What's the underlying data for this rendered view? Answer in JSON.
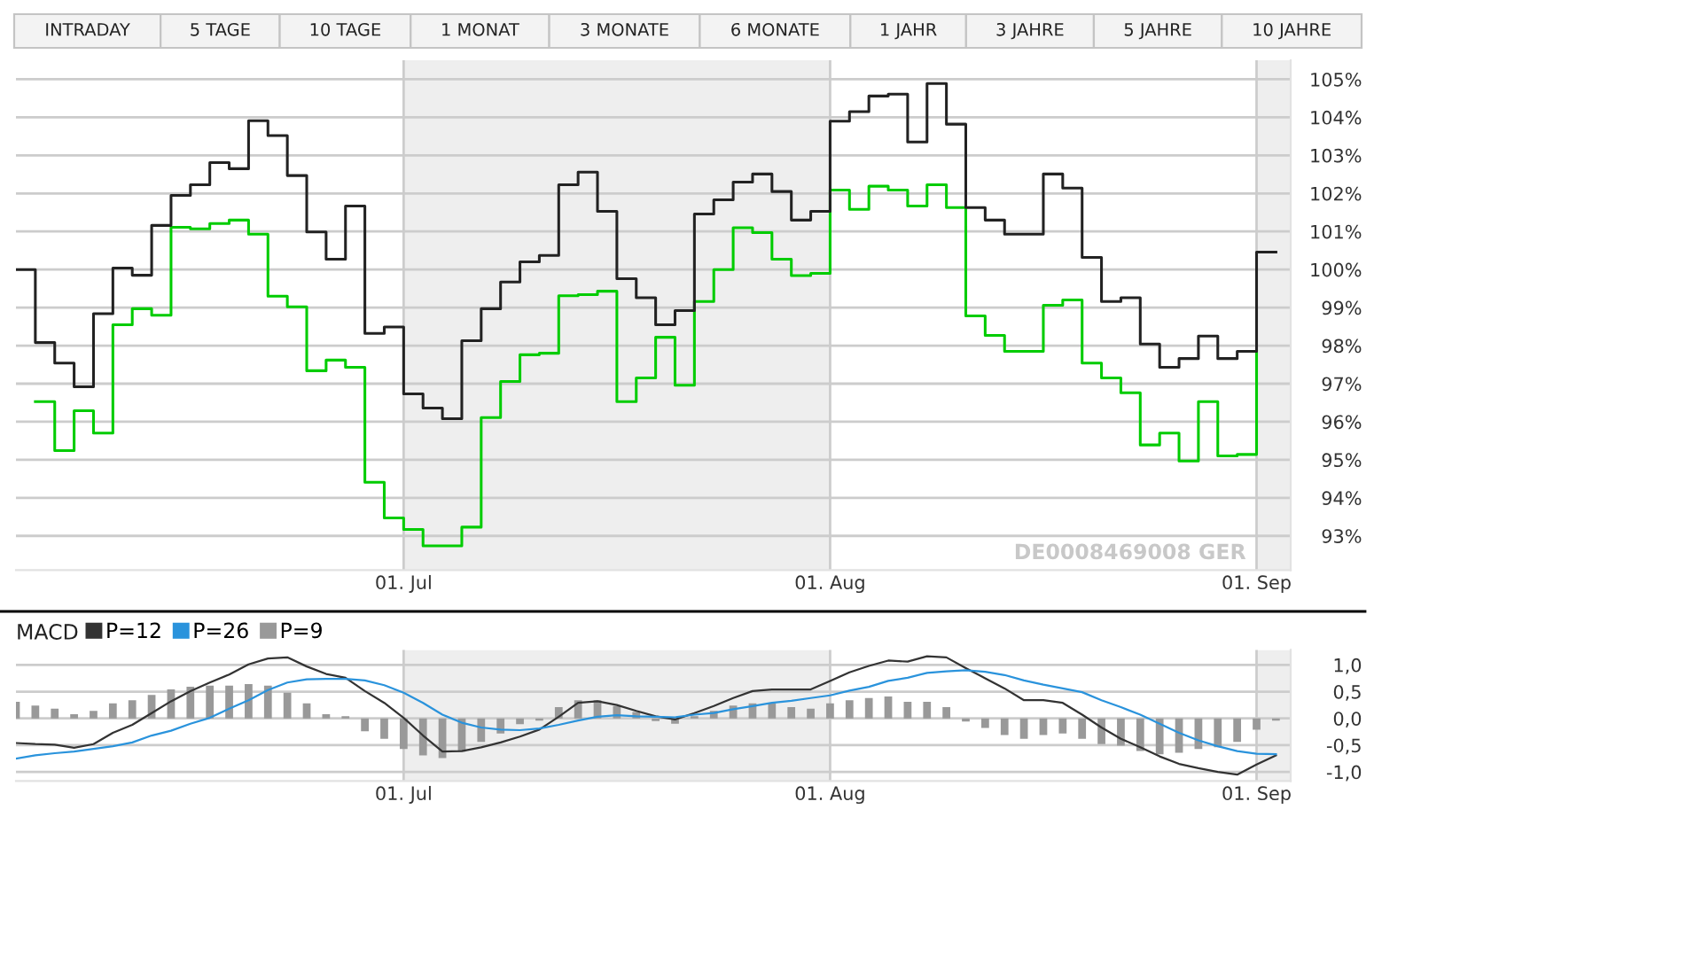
{
  "chart_data": [
    {
      "type": "step",
      "title": "DE0008469008 GER",
      "annotations": [
        "INTRADAY",
        "5 TAGE",
        "10 TAGE",
        "1 MONAT",
        "3 MONATE",
        "6 MONATE",
        "1 JAHR",
        "3 JAHRE",
        "5 JAHRE",
        "10 JAHRE"
      ],
      "categories": [
        null,
        null,
        null,
        null,
        null,
        null,
        null,
        null,
        null,
        null,
        null,
        null,
        null,
        null,
        null,
        null,
        null,
        null,
        null,
        null,
        "01. Jul",
        null,
        null,
        null,
        null,
        null,
        null,
        null,
        null,
        null,
        null,
        null,
        null,
        null,
        null,
        null,
        null,
        null,
        null,
        null,
        null,
        null,
        "01. Aug",
        null,
        null,
        null,
        null,
        null,
        null,
        null,
        null,
        null,
        null,
        null,
        null,
        null,
        null,
        null,
        null,
        null,
        null,
        null,
        null,
        null,
        "01. Sep",
        null
      ],
      "series": [
        {
          "color": "#00cc00",
          "values": [
            null,
            96.53,
            95.24,
            96.29,
            95.7,
            98.55,
            98.97,
            98.8,
            101.11,
            101.07,
            101.21,
            101.3,
            100.93,
            99.3,
            99.02,
            97.34,
            97.62,
            97.43,
            94.41,
            93.47,
            93.17,
            92.74,
            92.74,
            93.23,
            96.11,
            97.06,
            97.76,
            97.8,
            99.31,
            99.34,
            99.43,
            96.53,
            97.15,
            98.22,
            96.96,
            99.16,
            100.0,
            101.1,
            100.97,
            100.27,
            99.84,
            99.9,
            102.09,
            101.58,
            102.19,
            102.09,
            101.67,
            102.23,
            101.63,
            98.78,
            98.27,
            97.85,
            97.85,
            99.06,
            99.2,
            97.54,
            97.15,
            96.76,
            95.39,
            95.7,
            94.97,
            96.53,
            95.1,
            95.14,
            97.85,
            null
          ]
        },
        {
          "color": "#222222",
          "values": [
            100.0,
            98.08,
            97.54,
            96.92,
            98.84,
            100.04,
            99.85,
            101.16,
            101.95,
            102.23,
            102.81,
            102.65,
            103.91,
            103.52,
            102.47,
            100.99,
            100.27,
            101.67,
            98.32,
            98.49,
            96.73,
            96.36,
            96.08,
            98.13,
            98.97,
            99.67,
            100.2,
            100.37,
            102.23,
            102.56,
            101.53,
            99.76,
            99.26,
            98.55,
            98.92,
            101.46,
            101.83,
            102.3,
            102.51,
            102.05,
            101.3,
            101.53,
            103.9,
            104.15,
            104.56,
            104.61,
            103.35,
            104.89,
            103.82,
            101.63,
            101.3,
            100.93,
            100.93,
            102.51,
            102.14,
            100.32,
            99.16,
            99.26,
            98.04,
            97.43,
            97.66,
            98.25,
            97.66,
            97.85,
            100.46,
            100.46
          ]
        }
      ],
      "ylim": [
        92.1,
        105.5
      ],
      "yticks": [
        {
          "value": 93,
          "label": "93%"
        },
        {
          "value": 94,
          "label": "94%"
        },
        {
          "value": 95,
          "label": "95%"
        },
        {
          "value": 96,
          "label": "96%"
        },
        {
          "value": 97,
          "label": "97%"
        },
        {
          "value": 98,
          "label": "98%"
        },
        {
          "value": 99,
          "label": "99%"
        },
        {
          "value": 100,
          "label": "100%"
        },
        {
          "value": 101,
          "label": "101%"
        },
        {
          "value": 102,
          "label": "102%"
        },
        {
          "value": 103,
          "label": "103%"
        },
        {
          "value": 104,
          "label": "104%"
        },
        {
          "value": 105,
          "label": "105%"
        }
      ],
      "grid": true,
      "bands": [
        {
          "axis": "x",
          "from": "01. Jul",
          "to": "01. Aug",
          "color": "#eeeeee"
        }
      ]
    },
    {
      "type": "line",
      "title": "MACD",
      "categories": [
        null,
        null,
        null,
        null,
        null,
        null,
        null,
        null,
        null,
        null,
        null,
        null,
        null,
        null,
        null,
        null,
        null,
        null,
        null,
        null,
        "01. Jul",
        null,
        null,
        null,
        null,
        null,
        null,
        null,
        null,
        null,
        null,
        null,
        null,
        null,
        null,
        null,
        null,
        null,
        null,
        null,
        null,
        null,
        "01. Aug",
        null,
        null,
        null,
        null,
        null,
        null,
        null,
        null,
        null,
        null,
        null,
        null,
        null,
        null,
        null,
        null,
        null,
        null,
        null,
        null,
        null,
        "01. Sep",
        null
      ],
      "series": [
        {
          "name": "P=12",
          "color": "#333333",
          "values": [
            -0.46,
            -0.48,
            -0.49,
            -0.55,
            -0.48,
            -0.27,
            -0.12,
            0.1,
            0.32,
            0.51,
            0.67,
            0.82,
            1.01,
            1.12,
            1.14,
            0.97,
            0.83,
            0.76,
            0.51,
            0.29,
            0.01,
            -0.32,
            -0.62,
            -0.61,
            -0.54,
            -0.45,
            -0.34,
            -0.21,
            0.03,
            0.29,
            0.32,
            0.25,
            0.14,
            0.04,
            -0.02,
            0.1,
            0.23,
            0.38,
            0.51,
            0.54,
            0.54,
            0.54,
            0.7,
            0.86,
            0.98,
            1.08,
            1.06,
            1.16,
            1.14,
            0.94,
            0.75,
            0.56,
            0.34,
            0.34,
            0.29,
            0.07,
            -0.17,
            -0.38,
            -0.54,
            -0.71,
            -0.85,
            -0.93,
            -1.0,
            -1.05,
            -0.86,
            -0.69
          ]
        },
        {
          "name": "P=26",
          "color": "#2a93dc",
          "values": [
            -0.75,
            -0.69,
            -0.65,
            -0.62,
            -0.57,
            -0.52,
            -0.45,
            -0.32,
            -0.23,
            -0.1,
            0.01,
            0.18,
            0.34,
            0.53,
            0.67,
            0.73,
            0.74,
            0.74,
            0.71,
            0.62,
            0.48,
            0.29,
            0.07,
            -0.08,
            -0.17,
            -0.21,
            -0.22,
            -0.19,
            -0.12,
            -0.04,
            0.03,
            0.06,
            0.04,
            0.03,
            0.02,
            0.07,
            0.1,
            0.17,
            0.23,
            0.29,
            0.33,
            0.38,
            0.43,
            0.52,
            0.59,
            0.7,
            0.76,
            0.85,
            0.88,
            0.9,
            0.87,
            0.81,
            0.71,
            0.63,
            0.56,
            0.49,
            0.34,
            0.21,
            0.07,
            -0.1,
            -0.27,
            -0.41,
            -0.52,
            -0.61,
            -0.66,
            -0.67
          ]
        },
        {
          "name": "P=9",
          "type": "bar",
          "color": "#999999",
          "values": [
            0.31,
            0.24,
            0.18,
            0.08,
            0.14,
            0.28,
            0.34,
            0.44,
            0.54,
            0.59,
            0.61,
            0.61,
            0.64,
            0.61,
            0.48,
            0.28,
            0.08,
            0.04,
            -0.24,
            -0.38,
            -0.57,
            -0.69,
            -0.74,
            -0.62,
            -0.44,
            -0.28,
            -0.11,
            -0.04,
            0.21,
            0.34,
            0.34,
            0.23,
            0.12,
            -0.05,
            -0.1,
            0.04,
            0.14,
            0.24,
            0.28,
            0.28,
            0.21,
            0.18,
            0.28,
            0.34,
            0.38,
            0.41,
            0.31,
            0.31,
            0.21,
            -0.06,
            -0.18,
            -0.31,
            -0.38,
            -0.31,
            -0.28,
            -0.38,
            -0.48,
            -0.51,
            -0.61,
            -0.67,
            -0.64,
            -0.57,
            -0.54,
            -0.44,
            -0.21,
            -0.04
          ]
        }
      ],
      "ylim": [
        -1.17,
        1.28
      ],
      "yticks": [
        {
          "value": -1,
          "label": "-1,0"
        },
        {
          "value": -0.5,
          "label": "-0,5"
        },
        {
          "value": 0,
          "label": "0,0"
        },
        {
          "value": 0.5,
          "label": "0,5"
        },
        {
          "value": 1,
          "label": "1,0"
        }
      ],
      "grid": true,
      "legend": "top left",
      "bands": [
        {
          "axis": "x",
          "from": "01. Jul",
          "to": "01. Aug",
          "color": "#eeeeee"
        }
      ]
    }
  ]
}
